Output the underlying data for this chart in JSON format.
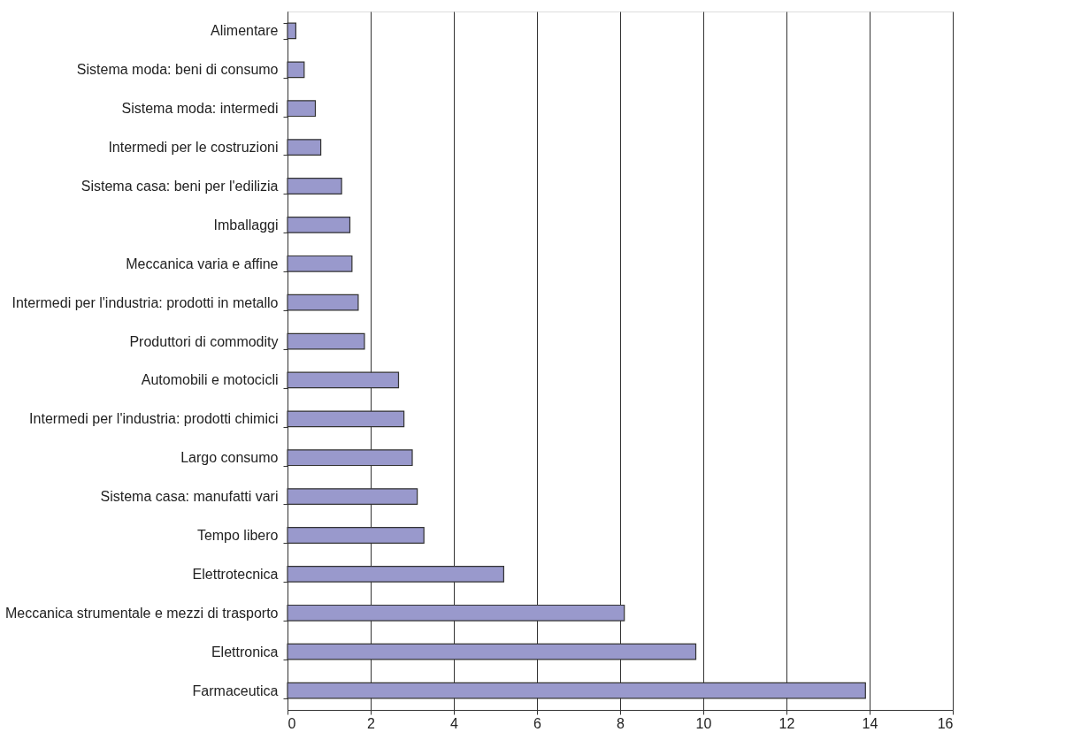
{
  "chart_data": {
    "type": "bar",
    "orientation": "horizontal",
    "categories": [
      "Alimentare",
      "Sistema moda: beni di consumo",
      "Sistema moda: intermedi",
      "Intermedi per le costruzioni",
      "Sistema casa: beni per l'edilizia",
      "Imballaggi",
      "Meccanica varia e affine",
      "Intermedi per l'industria: prodotti in metallo",
      "Produttori di commodity",
      "Automobili e motocicli",
      "Intermedi per l'industria: prodotti chimici",
      "Largo consumo",
      "Sistema casa: manufatti vari",
      "Tempo libero",
      "Elettrotecnica",
      "Meccanica strumentale e mezzi di trasporto",
      "Elettronica",
      "Farmaceutica"
    ],
    "values": [
      0.2,
      0.4,
      0.67,
      0.8,
      1.3,
      1.5,
      1.55,
      1.7,
      1.85,
      2.67,
      2.8,
      3.0,
      3.12,
      3.28,
      5.2,
      8.1,
      9.82,
      13.9
    ],
    "color": "#9999cc",
    "xlim": [
      0,
      16
    ],
    "xticks": [
      0,
      2,
      4,
      6,
      8,
      10,
      12,
      14,
      16
    ],
    "grid": "x"
  }
}
